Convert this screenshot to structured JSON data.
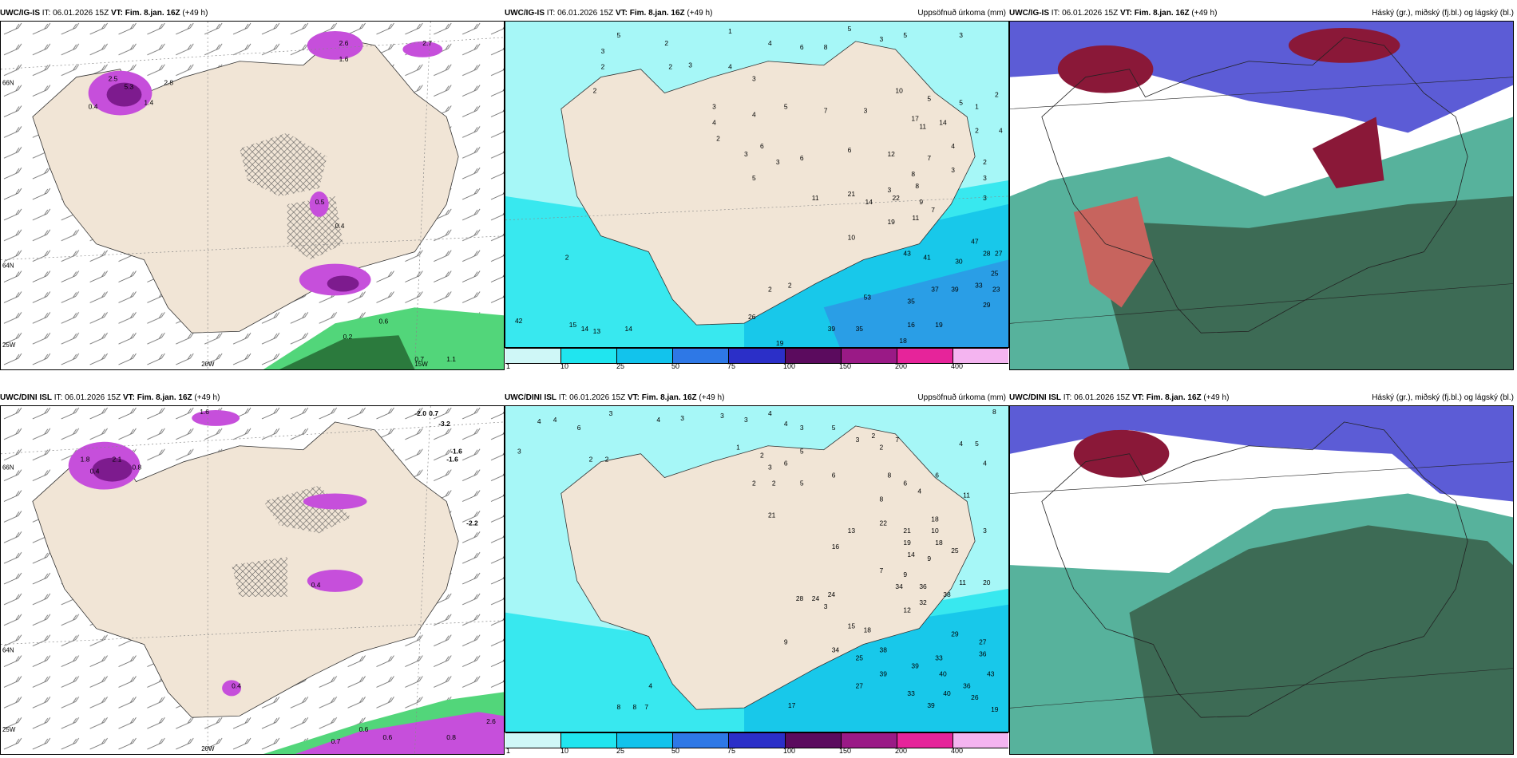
{
  "colors": {
    "land": "#f1e5d6",
    "sea_light": "#a6f7f7",
    "sea_cyan": "#38e8ef",
    "sea_mid": "#18c8ea",
    "sea_blue": "#2a9ee6",
    "magenta": "#c64fdb",
    "magenta_dark": "#7d1b8e",
    "green": "#52d67a",
    "green_dark": "#2b7a3d",
    "cloud_dark": "#3d6b55",
    "cloud_teal": "#57b29c",
    "cloud_blue": "#5c5cd6",
    "cloud_red": "#8a1838"
  },
  "row1": {
    "p1": {
      "title_bold": "UWC/IG-IS",
      "title_it": " IT: 06.01.2026 15Z ",
      "title_vt_bold": "VT: Fim. 8.jan. 16Z",
      "title_tail": " (+49 h)",
      "labels": {
        "lon1": "20W",
        "lon2": "15W",
        "lat1": "66N",
        "lat2": "64N",
        "lon3": "25W"
      },
      "values": [
        "2.6",
        "1.6",
        "2.7",
        "5.3",
        "2.5",
        "2.8",
        "0.4",
        "0.5",
        "1.4",
        "0.4",
        "0.6",
        "0.2",
        "0.7",
        "1.1"
      ]
    },
    "p2": {
      "title_bold": "UWC/IG-IS",
      "title_it": " IT: 06.01.2026 15Z ",
      "title_vt_bold": "VT: Fim. 8.jan. 16Z",
      "title_tail": " (+49 h)",
      "right_title": "Uppsöfnuð úrkoma (mm)",
      "values": [
        "5",
        "1",
        "3",
        "2",
        "4",
        "6",
        "8",
        "5",
        "3",
        "5",
        "3",
        "2",
        "3",
        "4",
        "3",
        "2",
        "10",
        "5",
        "5",
        "1",
        "2",
        "3",
        "4",
        "5",
        "7",
        "3",
        "17",
        "11",
        "14",
        "2",
        "4",
        "3",
        "2",
        "4",
        "6",
        "12",
        "7",
        "8",
        "3",
        "2",
        "4",
        "3",
        "6",
        "5",
        "3",
        "11",
        "9",
        "3",
        "21",
        "14",
        "7",
        "22",
        "8",
        "19",
        "11",
        "10",
        "3",
        "47",
        "28",
        "27",
        "43",
        "41",
        "30",
        "25",
        "33",
        "23",
        "37",
        "39",
        "35",
        "53",
        "29",
        "16",
        "19",
        "35",
        "39",
        "18",
        "2",
        "2",
        "26",
        "42",
        "15",
        "14",
        "13",
        "14",
        "2",
        "6",
        "2",
        "19"
      ]
    },
    "p3": {
      "title_bold": "UWC/IG-IS",
      "title_it": " IT: 06.01.2026 15Z ",
      "title_vt_bold": "VT: Fim. 8.jan. 16Z",
      "title_tail": " (+49 h)",
      "right_title": "Háský (gr.), miðský (fj.bl.) og lágský (bl.)"
    }
  },
  "row2": {
    "p1": {
      "title_bold": "UWC/DINI ISL",
      "title_it": " IT: 06.01.2026 15Z ",
      "title_vt_bold": "VT: Fim. 8.jan. 16Z",
      "title_tail": " (+49 h)",
      "labels": {
        "lon1": "20W",
        "lat1": "66N",
        "lat2": "64N",
        "lon3": "25W"
      },
      "values": [
        "-2.0",
        "0.7",
        "-3.2",
        "-1.6",
        "-1.6",
        "-2.2",
        "1.6",
        "0.4",
        "2.1",
        "0.8",
        "1.8",
        "0.4",
        "0.4",
        "0.6",
        "0.6",
        "0.8",
        "2.6",
        "0.7"
      ]
    },
    "p2": {
      "title_bold": "UWC/DINI ISL",
      "title_it": " IT: 06.01.2026 15Z ",
      "title_vt_bold": "VT: Fim. 8.jan. 16Z",
      "title_tail": " (+49 h)",
      "right_title": "Uppsöfnuð úrkoma (mm)",
      "values": [
        "4",
        "4",
        "3",
        "6",
        "3",
        "4",
        "3",
        "3",
        "3",
        "4",
        "4",
        "3",
        "5",
        "8",
        "3",
        "2",
        "2",
        "7",
        "1",
        "2",
        "3",
        "6",
        "5",
        "4",
        "5",
        "2",
        "2",
        "4",
        "5",
        "6",
        "8",
        "2",
        "2",
        "6",
        "8",
        "6",
        "4",
        "11",
        "21",
        "18",
        "10",
        "18",
        "25",
        "19",
        "16",
        "13",
        "14",
        "9",
        "22",
        "21",
        "3",
        "7",
        "9",
        "34",
        "36",
        "38",
        "32",
        "12",
        "28",
        "24",
        "24",
        "3",
        "15",
        "18",
        "29",
        "27",
        "36",
        "38",
        "33",
        "25",
        "39",
        "40",
        "43",
        "36",
        "27",
        "34",
        "39",
        "17",
        "8",
        "8",
        "7",
        "4",
        "19",
        "20",
        "11",
        "9",
        "40",
        "39",
        "33",
        "26"
      ]
    },
    "p3": {
      "title_bold": "UWC/DINI ISL",
      "title_it": " IT: 06.01.2026 15Z ",
      "title_vt_bold": "VT: Fim. 8.jan. 16Z",
      "title_tail": " (+49 h)",
      "right_title": "Háský (gr.), miðský (fj.bl.) og lágský (bl.)"
    }
  },
  "legend": {
    "labels": [
      "1",
      "10",
      "25",
      "50",
      "75",
      "100",
      "150",
      "200",
      "400"
    ],
    "colors": [
      "#cff7f7",
      "#20e5ef",
      "#12c3ec",
      "#2e78e6",
      "#2b2fc8",
      "#5b0b5e",
      "#9a1a86",
      "#e6249a",
      "#f4b4f0"
    ]
  }
}
